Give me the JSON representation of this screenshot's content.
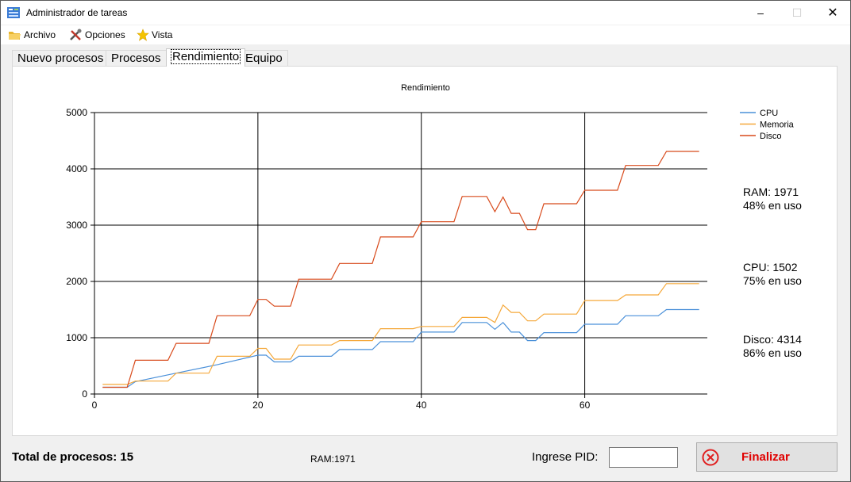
{
  "window": {
    "title": "Administrador de tareas",
    "app_icon": "task-manager-icon"
  },
  "menu": {
    "items": [
      {
        "label": "Archivo",
        "icon": "folder-icon"
      },
      {
        "label": "Opciones",
        "icon": "tools-icon"
      },
      {
        "label": "Vista",
        "icon": "star-icon"
      }
    ]
  },
  "tabs": [
    {
      "label": "Nuevo procesos",
      "active": false
    },
    {
      "label": "Procesos",
      "active": false
    },
    {
      "label": "Rendimiento",
      "active": true
    },
    {
      "label": "Equipo",
      "active": false
    }
  ],
  "stats": {
    "ram": {
      "line1": "RAM: 1971",
      "line2": "48% en uso"
    },
    "cpu": {
      "line1": "CPU: 1502",
      "line2": "75% en uso"
    },
    "disco": {
      "line1": "Disco: 4314",
      "line2": "86% en uso"
    }
  },
  "footer": {
    "total": "Total de procesos: 15",
    "ram": "RAM:1971",
    "pid_label": "Ingrese PID:",
    "pid_value": "",
    "finalizar_label": "Finalizar"
  },
  "chart_data": {
    "type": "line",
    "title": "Rendimiento",
    "xlim": [
      0,
      75
    ],
    "ylim": [
      0,
      5000
    ],
    "xticks": [
      0,
      20,
      40,
      60
    ],
    "yticks": [
      0,
      1000,
      2000,
      3000,
      4000,
      5000
    ],
    "grid": true,
    "legend_position": "top-right",
    "series": [
      {
        "name": "CPU",
        "color": "#4a90d9",
        "x": [
          1,
          4,
          5,
          10,
          15,
          20,
          21,
          22,
          24,
          25,
          29,
          30,
          34,
          35,
          39,
          40,
          44,
          45,
          48,
          49,
          50,
          51,
          52,
          53,
          54,
          55,
          59,
          60,
          64,
          65,
          69,
          70,
          74
        ],
        "y": [
          120,
          120,
          220,
          370,
          520,
          690,
          690,
          570,
          570,
          670,
          670,
          790,
          790,
          930,
          930,
          1100,
          1100,
          1270,
          1270,
          1150,
          1270,
          1100,
          1100,
          950,
          950,
          1090,
          1090,
          1240,
          1240,
          1390,
          1390,
          1500,
          1500
        ]
      },
      {
        "name": "Memoria",
        "color": "#f5a83a",
        "x": [
          1,
          4,
          5,
          9,
          10,
          14,
          15,
          19,
          20,
          21,
          22,
          24,
          25,
          29,
          30,
          34,
          35,
          39,
          40,
          44,
          45,
          48,
          49,
          50,
          51,
          52,
          53,
          54,
          55,
          59,
          60,
          64,
          65,
          69,
          70,
          74
        ],
        "y": [
          170,
          170,
          230,
          230,
          370,
          370,
          670,
          670,
          810,
          810,
          620,
          620,
          870,
          870,
          950,
          950,
          1160,
          1160,
          1200,
          1200,
          1360,
          1360,
          1270,
          1580,
          1450,
          1450,
          1300,
          1300,
          1420,
          1420,
          1660,
          1660,
          1760,
          1760,
          1960,
          1960
        ]
      },
      {
        "name": "Disco",
        "color": "#d84a1b",
        "x": [
          1,
          4,
          5,
          9,
          10,
          14,
          15,
          19,
          20,
          21,
          22,
          24,
          25,
          29,
          30,
          34,
          35,
          39,
          40,
          44,
          45,
          48,
          49,
          50,
          51,
          52,
          53,
          54,
          55,
          59,
          60,
          64,
          65,
          69,
          70,
          74
        ],
        "y": [
          120,
          120,
          600,
          600,
          900,
          900,
          1390,
          1390,
          1680,
          1680,
          1560,
          1560,
          2040,
          2040,
          2320,
          2320,
          2790,
          2790,
          3060,
          3060,
          3510,
          3510,
          3240,
          3500,
          3210,
          3210,
          2920,
          2920,
          3380,
          3380,
          3620,
          3620,
          4060,
          4060,
          4310,
          4310
        ]
      }
    ]
  }
}
